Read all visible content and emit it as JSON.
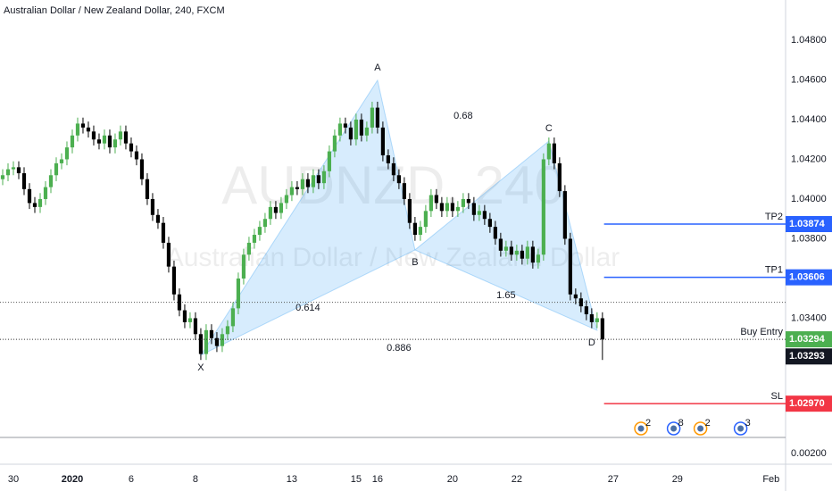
{
  "chart_data": {
    "type": "candlestick",
    "title": "Australian Dollar / New Zealand Dollar, 240, FXCM",
    "watermark": [
      "AUDNZD, 240",
      "Australian Dollar / New Zealand Dollar"
    ],
    "up_color": "#4caf50",
    "down_color": "#000000",
    "xlim": [
      -0.5,
      146.2
    ],
    "xticks": [
      {
        "value": 2,
        "label": "30"
      },
      {
        "value": 13,
        "label": "2020"
      },
      {
        "value": 24,
        "label": "6"
      },
      {
        "value": 36,
        "label": "8"
      },
      {
        "value": 54,
        "label": "13"
      },
      {
        "value": 66,
        "label": "15"
      },
      {
        "value": 70,
        "label": "16"
      },
      {
        "value": 84,
        "label": "20"
      },
      {
        "value": 96,
        "label": "22"
      },
      {
        "value": 114,
        "label": "27"
      },
      {
        "value": 126,
        "label": "29"
      },
      {
        "value": 143.5,
        "label": "Feb"
      }
    ],
    "ylim": [
      1.028,
      1.05002
    ],
    "yticks": [
      {
        "value": 1.048,
        "label": "1.04800"
      },
      {
        "value": 1.046,
        "label": "1.04600"
      },
      {
        "value": 1.044,
        "label": "1.04400"
      },
      {
        "value": 1.042,
        "label": "1.04200"
      },
      {
        "value": 1.04,
        "label": "1.04000"
      },
      {
        "value": 1.038,
        "label": "1.03800"
      },
      {
        "value": 1.034,
        "label": "1.03400"
      }
    ],
    "open": [
      1.041,
      1.0412,
      1.0415,
      1.0416,
      1.0413,
      1.0405,
      1.0398,
      1.0396,
      1.04,
      1.0406,
      1.0412,
      1.0418,
      1.042,
      1.0426,
      1.0432,
      1.0438,
      1.0436,
      1.0434,
      1.043,
      1.0428,
      1.0432,
      1.0426,
      1.043,
      1.0434,
      1.0428,
      1.0424,
      1.042,
      1.041,
      1.04,
      1.0392,
      1.0388,
      1.0378,
      1.0366,
      1.0352,
      1.0344,
      1.0338,
      1.034,
      1.0332,
      1.0322,
      1.0334,
      1.033,
      1.0326,
      1.0332,
      1.0336,
      1.0345,
      1.036,
      1.0372,
      1.0378,
      1.0382,
      1.0386,
      1.039,
      1.0396,
      1.0393,
      1.0398,
      1.0402,
      1.0406,
      1.0405,
      1.041,
      1.0406,
      1.0412,
      1.0408,
      1.0414,
      1.0424,
      1.0432,
      1.0438,
      1.0436,
      1.043,
      1.044,
      1.0432,
      1.0436,
      1.0446,
      1.0436,
      1.0422,
      1.0418,
      1.0412,
      1.0408,
      1.04,
      1.0388,
      1.0382,
      1.0386,
      1.0394,
      1.0402,
      1.0398,
      1.0394,
      1.0398,
      1.0394,
      1.0396,
      1.04,
      1.0398,
      1.0392,
      1.0394,
      1.039,
      1.0386,
      1.038,
      1.0374,
      1.0376,
      1.0372,
      1.0374,
      1.037,
      1.0376,
      1.0368,
      1.0372,
      1.042,
      1.0428,
      1.0418,
      1.0404,
      1.038,
      1.0352,
      1.035,
      1.0346,
      1.0342,
      1.0338,
      1.034
    ],
    "high": [
      1.0415,
      1.0418,
      1.0419,
      1.0419,
      1.0416,
      1.0408,
      1.0401,
      1.0403,
      1.0409,
      1.0415,
      1.0421,
      1.0423,
      1.0429,
      1.0435,
      1.0441,
      1.0441,
      1.0439,
      1.0437,
      1.0433,
      1.0435,
      1.0435,
      1.0433,
      1.0437,
      1.0437,
      1.0431,
      1.0427,
      1.0423,
      1.0413,
      1.0403,
      1.0395,
      1.0391,
      1.0381,
      1.0369,
      1.0355,
      1.0347,
      1.0343,
      1.0343,
      1.0335,
      1.0337,
      1.0337,
      1.0333,
      1.0335,
      1.0339,
      1.0348,
      1.0363,
      1.0375,
      1.0381,
      1.0385,
      1.0389,
      1.0393,
      1.0399,
      1.0399,
      1.0401,
      1.0405,
      1.0409,
      1.0409,
      1.0413,
      1.0413,
      1.0415,
      1.0415,
      1.0417,
      1.0427,
      1.0435,
      1.0441,
      1.0441,
      1.0439,
      1.0443,
      1.0443,
      1.0439,
      1.0449,
      1.0449,
      1.0439,
      1.0425,
      1.0421,
      1.0415,
      1.0411,
      1.0403,
      1.0391,
      1.0389,
      1.0397,
      1.0405,
      1.0405,
      1.0401,
      1.0401,
      1.0401,
      1.0399,
      1.0403,
      1.0403,
      1.0401,
      1.0397,
      1.0397,
      1.0393,
      1.0389,
      1.0383,
      1.0379,
      1.0379,
      1.0377,
      1.0377,
      1.0379,
      1.0379,
      1.0375,
      1.0423,
      1.0431,
      1.0431,
      1.0421,
      1.0407,
      1.0383,
      1.0355,
      1.0353,
      1.0349,
      1.0345,
      1.0343,
      1.0343
    ],
    "low": [
      1.0407,
      1.0409,
      1.0412,
      1.041,
      1.0402,
      1.0395,
      1.0393,
      1.0393,
      1.0397,
      1.0403,
      1.0409,
      1.0415,
      1.0417,
      1.0423,
      1.0429,
      1.0433,
      1.0431,
      1.0427,
      1.0425,
      1.0425,
      1.0423,
      1.0423,
      1.0427,
      1.0425,
      1.0421,
      1.0417,
      1.0407,
      1.0397,
      1.0389,
      1.0385,
      1.0375,
      1.0363,
      1.0349,
      1.0341,
      1.0335,
      1.0335,
      1.0329,
      1.0319,
      1.0319,
      1.0327,
      1.0323,
      1.0323,
      1.0329,
      1.0333,
      1.0342,
      1.0357,
      1.0369,
      1.0375,
      1.0379,
      1.0383,
      1.0387,
      1.039,
      1.039,
      1.0395,
      1.0399,
      1.0402,
      1.0402,
      1.0403,
      1.0403,
      1.0405,
      1.0405,
      1.0411,
      1.0421,
      1.0429,
      1.0433,
      1.0427,
      1.0427,
      1.0429,
      1.0429,
      1.0433,
      1.0433,
      1.0419,
      1.0415,
      1.0409,
      1.0405,
      1.0397,
      1.0385,
      1.0379,
      1.0379,
      1.0383,
      1.0391,
      1.0395,
      1.0391,
      1.0391,
      1.0391,
      1.0391,
      1.0393,
      1.0395,
      1.0389,
      1.0389,
      1.0387,
      1.0383,
      1.0377,
      1.0371,
      1.0371,
      1.0369,
      1.0369,
      1.0367,
      1.0367,
      1.0365,
      1.0365,
      1.0369,
      1.0417,
      1.0415,
      1.0401,
      1.0377,
      1.0349,
      1.0347,
      1.0343,
      1.0339,
      1.0335,
      1.0335,
      1.0319
    ],
    "close": [
      1.0412,
      1.0415,
      1.0416,
      1.0413,
      1.0405,
      1.0398,
      1.0396,
      1.04,
      1.0406,
      1.0412,
      1.0418,
      1.042,
      1.0426,
      1.0432,
      1.0438,
      1.0436,
      1.0434,
      1.043,
      1.0428,
      1.0432,
      1.0426,
      1.043,
      1.0434,
      1.0428,
      1.0424,
      1.042,
      1.041,
      1.04,
      1.0392,
      1.0388,
      1.0378,
      1.0366,
      1.0352,
      1.0344,
      1.0338,
      1.034,
      1.0332,
      1.0322,
      1.0334,
      1.033,
      1.0326,
      1.0332,
      1.0336,
      1.0345,
      1.036,
      1.0372,
      1.0378,
      1.0382,
      1.0386,
      1.039,
      1.0396,
      1.0393,
      1.0398,
      1.0402,
      1.0406,
      1.0405,
      1.041,
      1.0406,
      1.0412,
      1.0408,
      1.0414,
      1.0424,
      1.0432,
      1.0438,
      1.0436,
      1.043,
      1.044,
      1.0432,
      1.0436,
      1.0446,
      1.0436,
      1.0422,
      1.0418,
      1.0412,
      1.0408,
      1.04,
      1.0388,
      1.0382,
      1.0386,
      1.0394,
      1.0402,
      1.0398,
      1.0394,
      1.0398,
      1.0394,
      1.0396,
      1.04,
      1.0398,
      1.0392,
      1.0394,
      1.039,
      1.0386,
      1.038,
      1.0374,
      1.0376,
      1.0372,
      1.0374,
      1.037,
      1.0376,
      1.0368,
      1.0372,
      1.042,
      1.0428,
      1.0418,
      1.0404,
      1.038,
      1.0352,
      1.035,
      1.0346,
      1.0342,
      1.0338,
      1.034,
      1.03293
    ],
    "pattern": {
      "color": "#2196f3",
      "points": [
        {
          "label": "X",
          "x": 37,
          "price": 1.03214
        },
        {
          "label": "A",
          "x": 70,
          "price": 1.04598
        },
        {
          "label": "B",
          "x": 77,
          "price": 1.03744
        },
        {
          "label": "C",
          "x": 102,
          "price": 1.04292
        },
        {
          "label": "D",
          "x": 111,
          "price": 1.03339
        }
      ],
      "ratios": [
        {
          "from": 0,
          "to": 2,
          "label": 0.614
        },
        {
          "from": 1,
          "to": 3,
          "label": 0.68
        },
        {
          "from": 2,
          "to": 4,
          "label": 1.65
        },
        {
          "from": 0,
          "to": 4,
          "label": 0.886
        }
      ]
    },
    "levels": [
      {
        "name": "TP2",
        "value": 1.03874,
        "color": "#2962ff",
        "x_start": 112.3
      },
      {
        "name": "TP1",
        "value": 1.03606,
        "color": "#2962ff",
        "x_start": 112.3
      },
      {
        "name": "Buy Entry",
        "value": 1.03294,
        "color": "#4caf50",
        "dotted": true
      },
      {
        "name": "SL",
        "value": 1.0297,
        "value_label": "1.02970",
        "color": "#f23645",
        "x_start": 112.3
      }
    ],
    "dotted_levels": [
      1.0348
    ],
    "events": [
      {
        "x": 119.2,
        "count": 2
      },
      {
        "x": 125.3,
        "count": 8
      },
      {
        "x": 130.3,
        "count": 2
      },
      {
        "x": 137.8,
        "count": 3
      }
    ],
    "indicator": {
      "ylim": [
        0,
        0.004
      ],
      "yticks": [
        {
          "value": 0.002,
          "label": "0.00200"
        }
      ]
    }
  }
}
